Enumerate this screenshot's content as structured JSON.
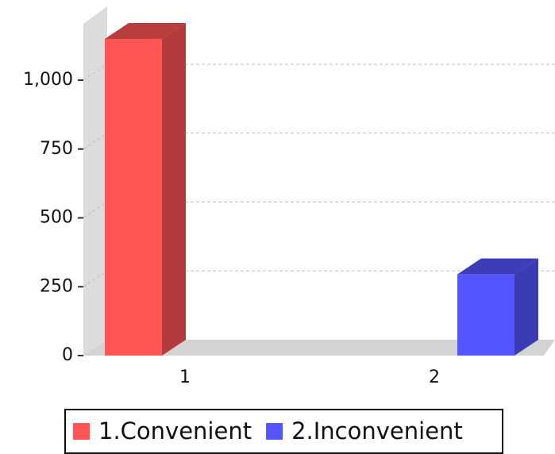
{
  "chart_data": {
    "type": "bar3d",
    "categories": [
      "1",
      "2"
    ],
    "series": [
      {
        "name": "1.Convenient",
        "color": "#ff5555",
        "values": [
          1150,
          null
        ]
      },
      {
        "name": "2.Inconvenient",
        "color": "#5555ff",
        "values": [
          null,
          295
        ]
      }
    ],
    "ylim": [
      0,
      1200
    ],
    "yticks": [
      0,
      250,
      500,
      750,
      {
        "value": 1000,
        "label": "1,000"
      }
    ],
    "grid": true,
    "legend": "bottom"
  }
}
